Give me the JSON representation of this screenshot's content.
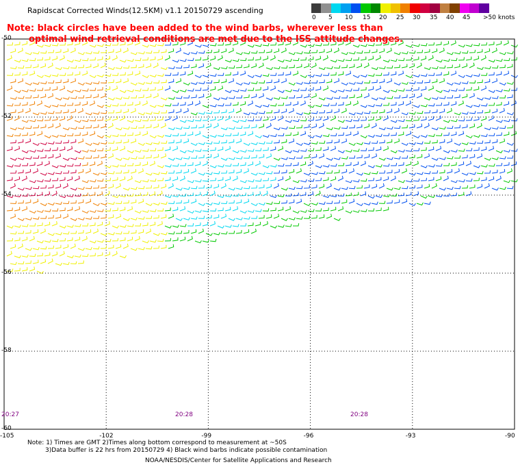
{
  "title": "Rapidscat Corrected Winds(12.5KM) v1.1 20150729 ascending",
  "note": {
    "line1": "Note: black circles have been added to the wind barbs, wherever less than",
    "line2": "optimal wind retrieval conditions are met due to the ISS attitude changes."
  },
  "legend": {
    "labels": [
      "0",
      "5",
      "10",
      "15",
      "20",
      "25",
      "30",
      "35",
      "40",
      "45",
      ">50 knots"
    ],
    "colors": [
      "#3c3c3c",
      "#909090",
      "#00d8f0",
      "#00a0f0",
      "#0050f0",
      "#00c800",
      "#008800",
      "#f0f000",
      "#f0c000",
      "#f08000",
      "#f00000",
      "#d00040",
      "#a00040",
      "#c08040",
      "#804000",
      "#f000f0",
      "#c000d0",
      "#6000a0"
    ]
  },
  "axes": {
    "lat_labels": [
      "-50",
      "-52",
      "-54",
      "-56",
      "-58",
      "-60"
    ],
    "lon_labels": [
      "-105",
      "-102",
      "-99",
      "-96",
      "-93",
      "-90"
    ]
  },
  "times": [
    "20:27",
    "20:28",
    "20:28"
  ],
  "footer": {
    "line1": "Note: 1) Times are GMT 2)Times along bottom correspond to measurement at ~50S",
    "line2": "3)Data buffer is 22 hrs from 20150729 4) Black wind barbs indicate possible contamination",
    "line3": "NOAA/NESDIS/Center for Satellite Applications and Research"
  },
  "map_data": {
    "lat_range": [
      -60,
      -50
    ],
    "lon_range": [
      -105,
      -90
    ],
    "swath_colors": {
      "calm_center": "#00d8f0",
      "light": "#0050f0",
      "moderate": "#00c800",
      "fresh": "#f0f000",
      "strong": "#f08000",
      "gale": "#d00040"
    }
  }
}
